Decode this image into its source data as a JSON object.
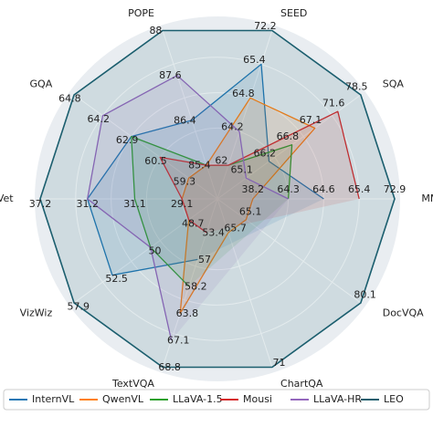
{
  "chart_data": {
    "type": "radar",
    "axes": [
      {
        "name": "MMB",
        "ticks": [
          38.2,
          64.3,
          64.6,
          65.4,
          72.9
        ]
      },
      {
        "name": "SQA",
        "ticks": [
          65.1,
          66.2,
          66.8,
          67.1,
          71.6,
          78.5
        ]
      },
      {
        "name": "SEED",
        "ticks": [
          62.0,
          64.2,
          64.8,
          65.4,
          72.2
        ]
      },
      {
        "name": "POPE",
        "ticks": [
          85.4,
          86.4,
          87.6,
          88.0
        ]
      },
      {
        "name": "GQA",
        "ticks": [
          59.3,
          60.5,
          62.9,
          64.2,
          64.8
        ]
      },
      {
        "name": "MMVet",
        "ticks": [
          29.1,
          31.1,
          31.2,
          37.2
        ]
      },
      {
        "name": "VizWiz",
        "ticks": [
          48.7,
          50.0,
          52.5,
          57.9
        ]
      },
      {
        "name": "TextVQA",
        "ticks": [
          53.4,
          57.0,
          58.2,
          63.8,
          67.1,
          68.8
        ]
      },
      {
        "name": "ChartQA",
        "ticks": [
          65.7,
          71.0
        ]
      },
      {
        "name": "DocVQA",
        "ticks": [
          65.1,
          80.1
        ]
      }
    ],
    "series": [
      {
        "name": "InternVL",
        "color": "#1f77b4",
        "values": [
          64.6,
          66.2,
          65.4,
          86.4,
          62.9,
          31.2,
          52.5,
          57.0,
          null,
          null
        ]
      },
      {
        "name": "QwenVL",
        "color": "#ff7f0e",
        "values": [
          38.2,
          67.1,
          64.8,
          85.4,
          59.3,
          29.1,
          48.7,
          63.8,
          65.7,
          65.1
        ]
      },
      {
        "name": "LLaVA-1.5",
        "color": "#2ca02c",
        "values": [
          64.3,
          66.8,
          62.0,
          85.4,
          62.9,
          31.1,
          50.0,
          58.2,
          null,
          null
        ]
      },
      {
        "name": "Mousi",
        "color": "#d62728",
        "values": [
          65.4,
          71.6,
          62.0,
          85.4,
          60.5,
          29.1,
          48.7,
          53.4,
          null,
          null
        ]
      },
      {
        "name": "LLaVA-HR",
        "color": "#9467bd",
        "values": [
          64.3,
          65.1,
          64.2,
          87.6,
          64.2,
          31.2,
          50.0,
          67.1,
          null,
          null
        ]
      },
      {
        "name": "LEO",
        "color": "#1b5e6e",
        "values": [
          72.9,
          78.5,
          72.2,
          88.0,
          64.8,
          37.2,
          57.9,
          68.8,
          71.0,
          80.1
        ]
      }
    ]
  }
}
